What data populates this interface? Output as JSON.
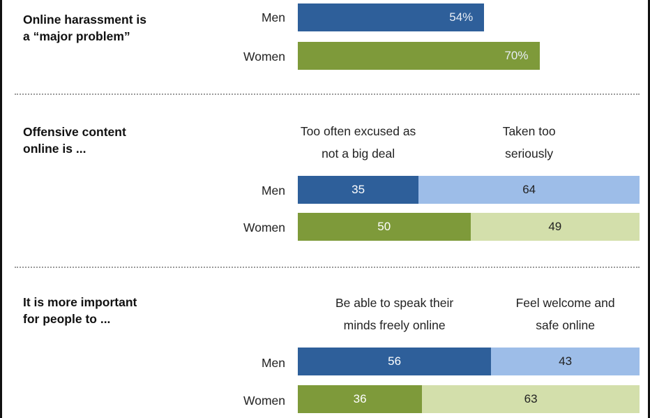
{
  "colors": {
    "men_primary": "#2e5f9a",
    "men_secondary": "#9dbde8",
    "women_primary": "#7e9a3a",
    "women_secondary": "#d3dfab",
    "text_on_dark": "#ffffff",
    "text_on_light": "#222222"
  },
  "chart_data": [
    {
      "type": "bar",
      "orientation": "horizontal",
      "title": "Online harassment is\na “major problem”",
      "categories": [
        "Men",
        "Women"
      ],
      "series": [
        {
          "values": [
            54,
            70
          ],
          "labels": [
            "54%",
            "70%"
          ]
        }
      ],
      "xlim": [
        0,
        100
      ]
    },
    {
      "type": "bar",
      "orientation": "horizontal",
      "stacked": true,
      "title": "Offensive content\nonline is ...",
      "categories": [
        "Men",
        "Women"
      ],
      "series": [
        {
          "name": "Too often excused as\nnot a big deal",
          "values": [
            35,
            50
          ],
          "labels": [
            "35",
            "50"
          ]
        },
        {
          "name": "Taken too\nseriously",
          "values": [
            64,
            49
          ],
          "labels": [
            "64",
            "49"
          ]
        }
      ],
      "xlim": [
        0,
        100
      ]
    },
    {
      "type": "bar",
      "orientation": "horizontal",
      "stacked": true,
      "title": "It is more important\nfor people to ...",
      "categories": [
        "Men",
        "Women"
      ],
      "series": [
        {
          "name": "Be able to speak their\nminds freely online",
          "values": [
            56,
            36
          ],
          "labels": [
            "56",
            "36"
          ]
        },
        {
          "name": "Feel welcome and\nsafe online",
          "values": [
            43,
            63
          ],
          "labels": [
            "43",
            "63"
          ]
        }
      ],
      "xlim": [
        0,
        100
      ]
    }
  ]
}
